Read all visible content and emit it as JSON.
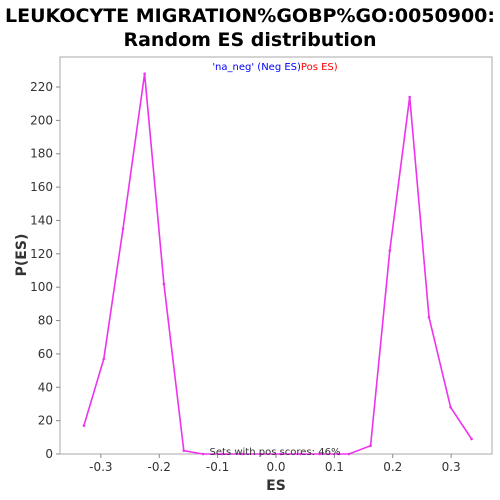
{
  "chart_data": {
    "type": "line",
    "title_line1": "LEUKOCYTE MIGRATION%GOBP%GO:0050900:",
    "title_line2": "Random ES distribution",
    "xlabel": "ES",
    "ylabel": "P(ES)",
    "xlim": [
      -0.37,
      0.37
    ],
    "ylim": [
      0,
      238
    ],
    "x_ticks": [
      -0.3,
      -0.2,
      -0.1,
      0.0,
      0.1,
      0.2,
      0.3
    ],
    "x_tick_labels": [
      "-0.3",
      "-0.2",
      "-0.1",
      "0.0",
      "0.1",
      "0.2",
      "0.3"
    ],
    "y_ticks": [
      0,
      20,
      40,
      60,
      80,
      100,
      120,
      140,
      160,
      180,
      200,
      220
    ],
    "y_tick_labels": [
      "0",
      "20",
      "40",
      "60",
      "80",
      "100",
      "120",
      "140",
      "160",
      "180",
      "200",
      "220"
    ],
    "grid": false,
    "legend": {
      "placement": "top-center",
      "neg_text": "'na_neg' (Neg ES)",
      "pos_text": "Pos ES)",
      "neg_color": "#0000ff",
      "pos_color": "#ff0000"
    },
    "annotation": "Sets with pos scores: 46%",
    "line_color": "#ee33ee",
    "series": [
      {
        "x": [
          -0.329,
          -0.295,
          -0.262,
          -0.225,
          -0.192,
          -0.158,
          -0.125,
          -0.092,
          -0.058,
          -0.025,
          0.008,
          0.042,
          0.075,
          0.108,
          0.125,
          0.162,
          0.195,
          0.229,
          0.262,
          0.299,
          0.335
        ],
        "y": [
          17,
          57,
          135,
          228,
          102,
          2,
          0,
          0,
          0,
          0,
          0,
          0,
          0,
          0,
          0,
          5,
          122,
          214,
          82,
          28,
          9
        ]
      }
    ]
  }
}
